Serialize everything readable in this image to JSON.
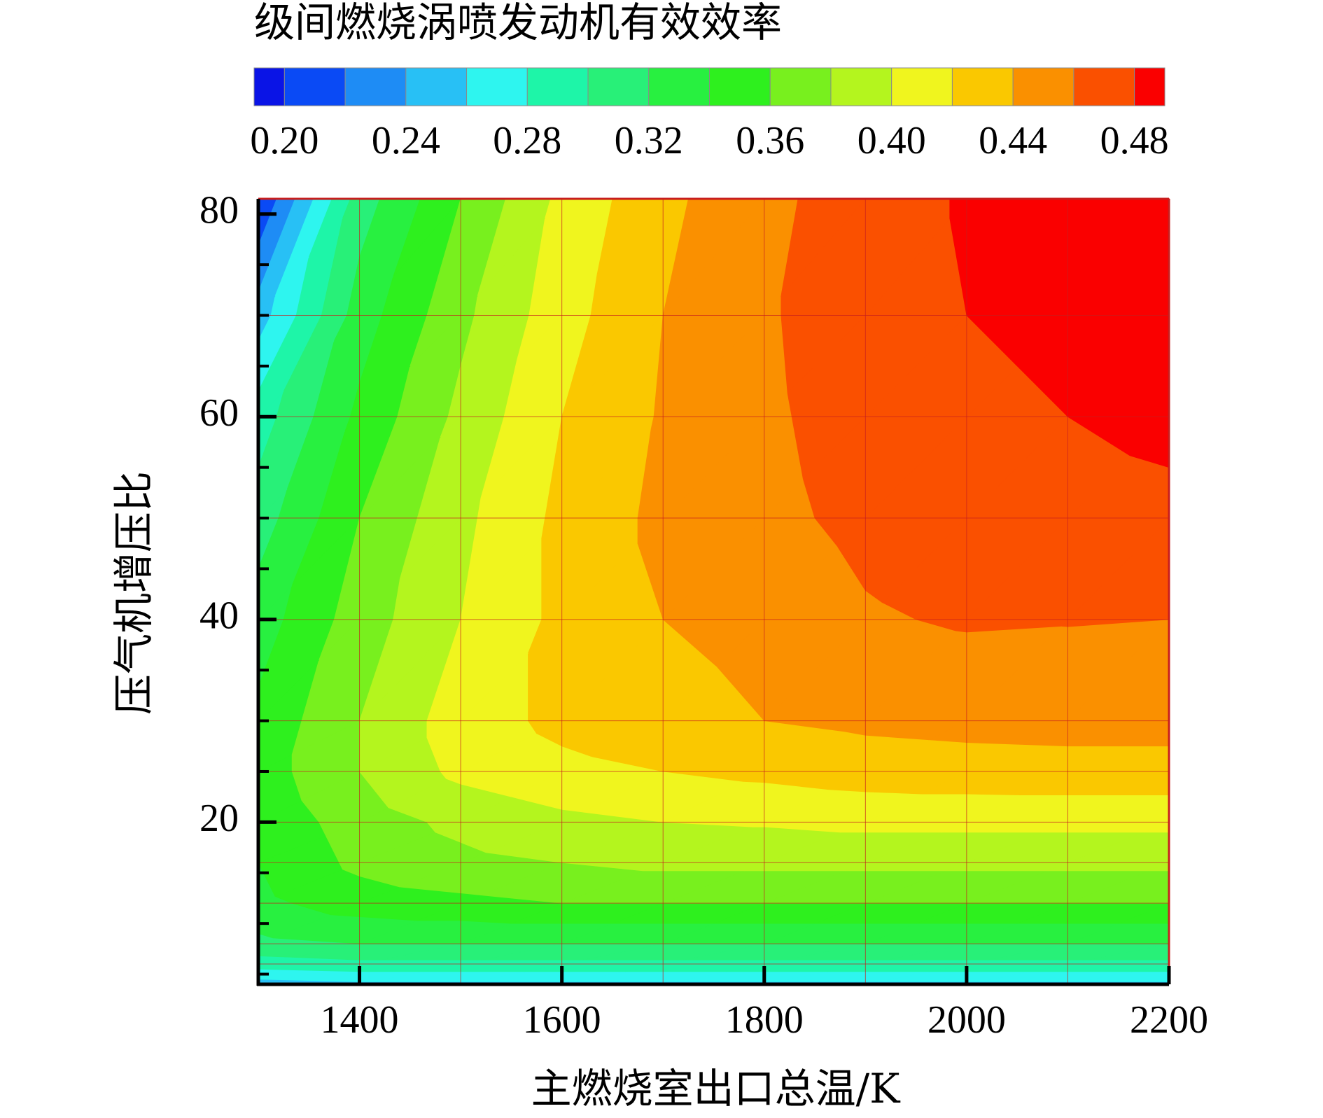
{
  "chart_data": {
    "type": "contour",
    "title": "级间燃烧涡喷发动机有效效率",
    "xlabel": "主燃烧室出口总温/K",
    "ylabel": "压气机增压比",
    "x": [
      1300,
      1400,
      1500,
      1600,
      1700,
      1800,
      1900,
      2000,
      2100,
      2200
    ],
    "y": [
      4,
      6,
      8,
      12,
      16,
      20,
      25,
      30,
      40,
      50,
      60,
      70,
      81.5
    ],
    "z": [
      [
        0.25,
        0.255,
        0.255,
        0.255,
        0.255,
        0.255,
        0.255,
        0.255,
        0.255,
        0.255
      ],
      [
        0.29,
        0.295,
        0.295,
        0.295,
        0.295,
        0.295,
        0.295,
        0.295,
        0.295,
        0.295
      ],
      [
        0.315,
        0.32,
        0.32,
        0.32,
        0.32,
        0.32,
        0.32,
        0.32,
        0.32,
        0.32
      ],
      [
        0.335,
        0.35,
        0.355,
        0.36,
        0.36,
        0.36,
        0.36,
        0.36,
        0.36,
        0.36
      ],
      [
        0.34,
        0.365,
        0.375,
        0.38,
        0.385,
        0.385,
        0.385,
        0.385,
        0.385,
        0.385
      ],
      [
        0.345,
        0.37,
        0.385,
        0.395,
        0.4,
        0.402,
        0.405,
        0.405,
        0.405,
        0.405
      ],
      [
        0.35,
        0.38,
        0.405,
        0.415,
        0.42,
        0.425,
        0.43,
        0.432,
        0.433,
        0.433
      ],
      [
        0.345,
        0.38,
        0.41,
        0.425,
        0.432,
        0.44,
        0.444,
        0.446,
        0.447,
        0.447
      ],
      [
        0.33,
        0.37,
        0.4,
        0.425,
        0.44,
        0.447,
        0.458,
        0.462,
        0.461,
        0.46
      ],
      [
        0.31,
        0.36,
        0.395,
        0.425,
        0.445,
        0.455,
        0.465,
        0.47,
        0.472,
        0.475
      ],
      [
        0.29,
        0.345,
        0.385,
        0.42,
        0.442,
        0.457,
        0.468,
        0.475,
        0.48,
        0.485
      ],
      [
        0.25,
        0.33,
        0.375,
        0.412,
        0.44,
        0.458,
        0.47,
        0.48,
        0.485,
        0.49
      ],
      [
        0.2,
        0.31,
        0.36,
        0.405,
        0.435,
        0.455,
        0.47,
        0.482,
        0.49,
        0.49
      ]
    ],
    "xlim": [
      1300,
      2200
    ],
    "ylim": [
      4,
      81.5
    ],
    "xticks": [
      1400,
      1600,
      1800,
      2000,
      2200
    ],
    "yticks": [
      20,
      40,
      60,
      80
    ],
    "y_minor_ticks": [
      5,
      10,
      15,
      25,
      30,
      35,
      45,
      50,
      55,
      65,
      70,
      75
    ],
    "mesh": true,
    "mesh_color": "#c81e1e",
    "colorbar": {
      "lim": [
        0.19,
        0.49
      ],
      "levels": [
        0.2,
        0.22,
        0.24,
        0.26,
        0.28,
        0.3,
        0.32,
        0.34,
        0.36,
        0.38,
        0.4,
        0.42,
        0.44,
        0.46,
        0.48
      ],
      "colors": [
        "#0a14e6",
        "#0a4af5",
        "#1e8cf5",
        "#28c0f5",
        "#2ef5ef",
        "#1ef5a8",
        "#28f078",
        "#28f040",
        "#2ef01e",
        "#78f01e",
        "#b4f51e",
        "#f0f51e",
        "#fac800",
        "#fa9000",
        "#fa5000",
        "#fa0000"
      ],
      "ticks": [
        {
          "value": 0.2,
          "label": "0.20"
        },
        {
          "value": 0.24,
          "label": "0.24"
        },
        {
          "value": 0.28,
          "label": "0.28"
        },
        {
          "value": 0.32,
          "label": "0.32"
        },
        {
          "value": 0.36,
          "label": "0.36"
        },
        {
          "value": 0.4,
          "label": "0.40"
        },
        {
          "value": 0.44,
          "label": "0.44"
        },
        {
          "value": 0.48,
          "label": "0.48"
        }
      ]
    }
  }
}
